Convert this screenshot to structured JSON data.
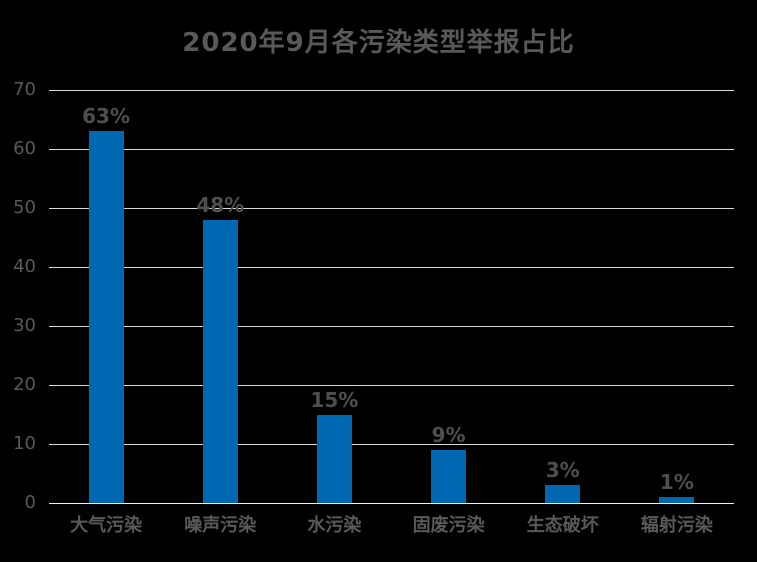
{
  "title": "2020年9月各污染类型举报占比",
  "colors": {
    "background": "#000000",
    "bar": "#0068B3",
    "title_text": "#595959",
    "axis_text": "#595959",
    "value_text": "#4F4F4F",
    "category_text": "#595959",
    "gridline": "#D9D9D9",
    "axis_line": "#F0F0F0"
  },
  "chart_data": {
    "type": "bar",
    "title": "2020年9月各污染类型举报占比",
    "categories": [
      "大气污染",
      "噪声污染",
      "水污染",
      "固废污染",
      "生态破坏",
      "辐射污染"
    ],
    "values": [
      63,
      48,
      15,
      9,
      3,
      1
    ],
    "value_labels": [
      "63%",
      "48%",
      "15%",
      "9%",
      "3%",
      "1%"
    ],
    "xlabel": "",
    "ylabel": "",
    "ylim": [
      0,
      70
    ],
    "yticks": [
      0,
      10,
      20,
      30,
      40,
      50,
      60,
      70
    ],
    "grid": "horizontal",
    "legend": "none"
  }
}
